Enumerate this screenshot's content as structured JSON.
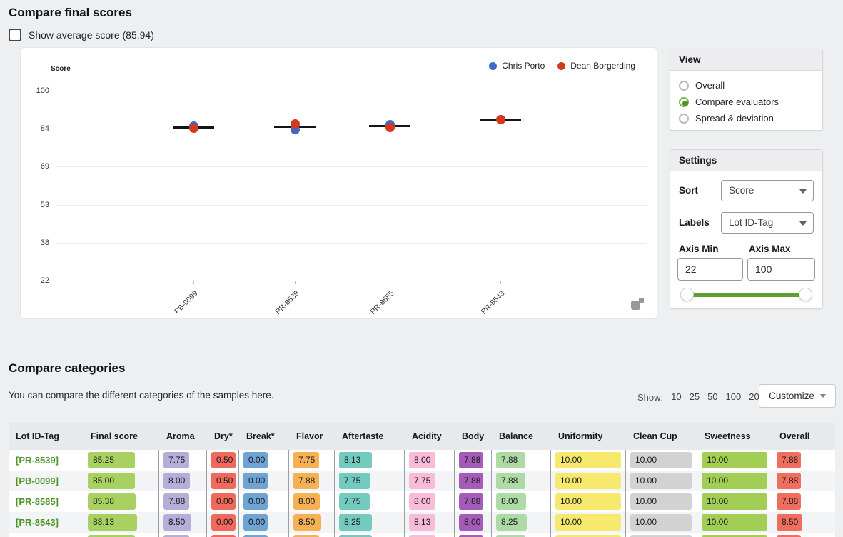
{
  "header": {
    "title": "Compare final scores",
    "checkbox_label": "Show average score (85.94)",
    "checkbox_checked": false
  },
  "chart": {
    "ylabel": "Score",
    "yticks": [
      100,
      84,
      69,
      53,
      38,
      22
    ],
    "legend": [
      {
        "name": "Chris Porto",
        "color": "#3c6ac6"
      },
      {
        "name": "Dean Borgerding",
        "color": "#d2391d"
      }
    ],
    "chart_data": {
      "type": "scatter",
      "categories": [
        "PB-0099",
        "PR-8539",
        "PR-8585",
        "PR-8543"
      ],
      "series": [
        {
          "name": "Chris Porto",
          "color": "#3c6ac6",
          "values": [
            85.5,
            84.0,
            86.0,
            88.1
          ]
        },
        {
          "name": "Dean Borgerding",
          "color": "#d2391d",
          "values": [
            84.5,
            86.5,
            84.8,
            88.15
          ]
        }
      ],
      "averages": [
        85.0,
        85.25,
        85.38,
        88.13
      ],
      "ylabel": "Score",
      "ylim": [
        22,
        100
      ],
      "grid": true,
      "legend_position": "top-right"
    }
  },
  "view_panel": {
    "title": "View",
    "options": [
      {
        "label": "Overall",
        "selected": false
      },
      {
        "label": "Compare evaluators",
        "selected": true
      },
      {
        "label": "Spread & deviation",
        "selected": false
      }
    ]
  },
  "settings_panel": {
    "title": "Settings",
    "sort_label": "Sort",
    "sort_value": "Score",
    "labels_label": "Labels",
    "labels_value": "Lot ID-Tag",
    "axis_min_label": "Axis Min",
    "axis_max_label": "Axis Max",
    "axis_min_value": "22",
    "axis_max_value": "100",
    "slider_color": "#5ca030"
  },
  "categories_section": {
    "title": "Compare categories",
    "description": "You can compare the different categories of the samples here.",
    "show_label": "Show:",
    "show_options": [
      "10",
      "25",
      "50",
      "100",
      "200"
    ],
    "show_selected": "25",
    "customize_label": "Customize"
  },
  "table": {
    "columns": [
      {
        "key": "lot",
        "label": "Lot ID-Tag",
        "color": ""
      },
      {
        "key": "final",
        "label": "Final score",
        "color": "#a9d162"
      },
      {
        "key": "aroma",
        "label": "Aroma",
        "color": "#b4aed8"
      },
      {
        "key": "dry",
        "label": "Dry*",
        "color": "#f0695c"
      },
      {
        "key": "break",
        "label": "Break*",
        "color": "#6fa3d4"
      },
      {
        "key": "flavor",
        "label": "Flavor",
        "color": "#f7b155"
      },
      {
        "key": "aftertaste",
        "label": "Aftertaste",
        "color": "#72cbbe"
      },
      {
        "key": "acidity",
        "label": "Acidity",
        "color": "#f8bcd9"
      },
      {
        "key": "body",
        "label": "Body",
        "color": "#a55cb8"
      },
      {
        "key": "balance",
        "label": "Balance",
        "color": "#aedaa6"
      },
      {
        "key": "uniformity",
        "label": "Uniformity",
        "color": "#f6e96d"
      },
      {
        "key": "cleancup",
        "label": "Clean Cup",
        "color": "#d2d2d2"
      },
      {
        "key": "sweetness",
        "label": "Sweetness",
        "color": "#a2ce55"
      },
      {
        "key": "overall",
        "label": "Overall",
        "color": "#ef6e5e"
      }
    ],
    "rows": [
      {
        "lot": "[PR-8539]",
        "final": "85.25",
        "aroma": "7.75",
        "dry": "0.50",
        "break": "0.00",
        "flavor": "7.75",
        "aftertaste": "8.13",
        "acidity": "8.00",
        "body": "7.88",
        "balance": "7.88",
        "uniformity": "10.00",
        "cleancup": "10.00",
        "sweetness": "10.00",
        "overall": "7.88"
      },
      {
        "lot": "[PB-0099]",
        "final": "85.00",
        "aroma": "8.00",
        "dry": "0.50",
        "break": "0.00",
        "flavor": "7.88",
        "aftertaste": "7.75",
        "acidity": "7.75",
        "body": "7.88",
        "balance": "7.88",
        "uniformity": "10.00",
        "cleancup": "10.00",
        "sweetness": "10.00",
        "overall": "7.88"
      },
      {
        "lot": "[PR-8585]",
        "final": "85.38",
        "aroma": "7.88",
        "dry": "0.00",
        "break": "0.00",
        "flavor": "8.00",
        "aftertaste": "7.75",
        "acidity": "8.00",
        "body": "7.88",
        "balance": "8.00",
        "uniformity": "10.00",
        "cleancup": "10.00",
        "sweetness": "10.00",
        "overall": "7.88"
      },
      {
        "lot": "[PR-8543]",
        "final": "88.13",
        "aroma": "8.50",
        "dry": "0.00",
        "break": "0.00",
        "flavor": "8.50",
        "aftertaste": "8.25",
        "acidity": "8.13",
        "body": "8.00",
        "balance": "8.25",
        "uniformity": "10.00",
        "cleancup": "10.00",
        "sweetness": "10.00",
        "overall": "8.50"
      }
    ],
    "partial_row_visible": true
  }
}
